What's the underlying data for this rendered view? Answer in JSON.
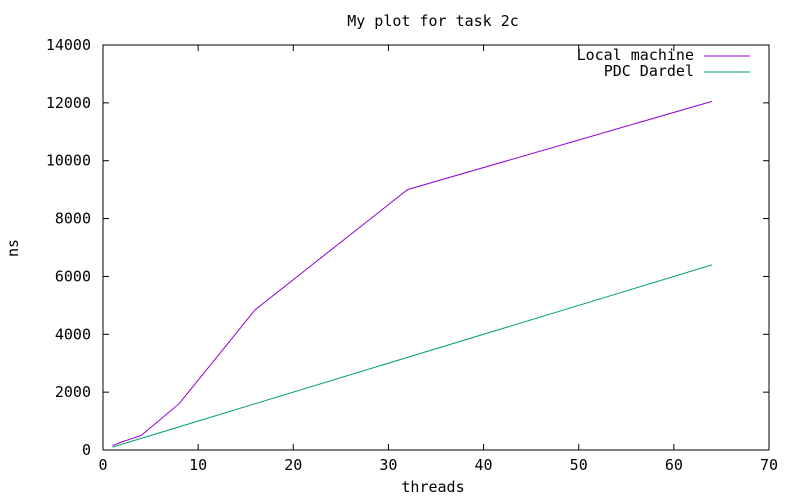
{
  "chart_data": {
    "type": "line",
    "title": "My plot for task 2c",
    "xlabel": "threads",
    "ylabel": "ns",
    "xlim": [
      0,
      70
    ],
    "ylim": [
      0,
      14000
    ],
    "xticks": [
      0,
      10,
      20,
      30,
      40,
      50,
      60,
      70
    ],
    "yticks": [
      0,
      2000,
      4000,
      6000,
      8000,
      10000,
      12000,
      14000
    ],
    "grid": false,
    "legend_position": "top-right",
    "series": [
      {
        "name": "Local machine",
        "color": "#9400d3",
        "x": [
          1,
          2,
          4,
          8,
          16,
          32,
          64
        ],
        "y": [
          150,
          280,
          500,
          1600,
          4850,
          9000,
          12050
        ]
      },
      {
        "name": "PDC Dardel",
        "color": "#009e73",
        "x": [
          1,
          2,
          4,
          8,
          16,
          32,
          64
        ],
        "y": [
          100,
          200,
          400,
          800,
          1600,
          3200,
          6400
        ]
      }
    ]
  }
}
